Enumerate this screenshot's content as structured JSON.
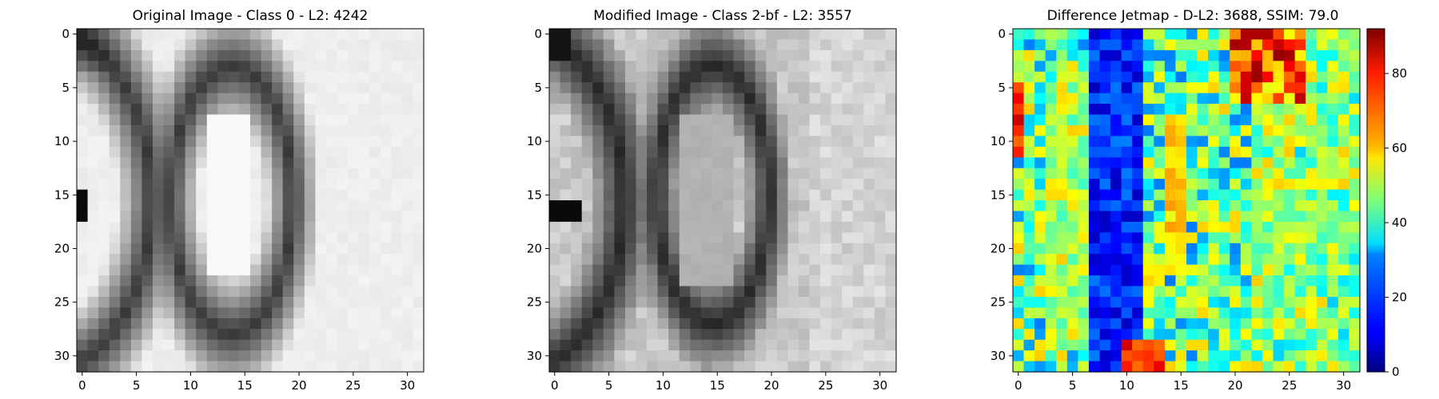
{
  "chart_data": [
    {
      "type": "heatmap",
      "title": "Original Image - Class 0 - L2: 4242",
      "title_color": "#000000",
      "colormap": "gray",
      "grid_size": [
        32,
        32
      ],
      "xlim": [
        -0.5,
        31.5
      ],
      "ylim": [
        31.5,
        -0.5
      ],
      "xticks": [
        0,
        5,
        10,
        15,
        20,
        25,
        30
      ],
      "yticks": [
        0,
        5,
        10,
        15,
        20,
        25,
        30
      ],
      "grid": false,
      "content": "grayscale 32x32 crop of digits showing the right part of a dark '0' on the left and a complete dark '0' in the center, light background"
    },
    {
      "type": "heatmap",
      "title": "Modified Image - Class 2-bf - L2: 3557",
      "title_color": "#ff0000",
      "colormap": "gray",
      "grid_size": [
        32,
        32
      ],
      "xlim": [
        -0.5,
        31.5
      ],
      "ylim": [
        31.5,
        -0.5
      ],
      "xticks": [
        0,
        5,
        10,
        15,
        20,
        25,
        30
      ],
      "yticks": [
        0,
        5,
        10,
        15,
        20,
        25,
        30
      ],
      "grid": false,
      "content": "modified grayscale 32x32 image, same two zeros with gray inner region and noisier background"
    },
    {
      "type": "heatmap",
      "title": "Difference Jetmap - D-L2: 3688, SSIM: 79.0",
      "title_color": "#000000",
      "colormap": "jet",
      "grid_size": [
        32,
        32
      ],
      "xlim": [
        -0.5,
        31.5
      ],
      "ylim": [
        31.5,
        -0.5
      ],
      "xticks": [
        0,
        5,
        10,
        15,
        20,
        25,
        30
      ],
      "yticks": [
        0,
        5,
        10,
        15,
        20,
        25,
        30
      ],
      "grid": false,
      "colorbar": {
        "range": [
          0,
          92
        ],
        "ticks": [
          0,
          20,
          40,
          60,
          80
        ]
      }
    }
  ]
}
